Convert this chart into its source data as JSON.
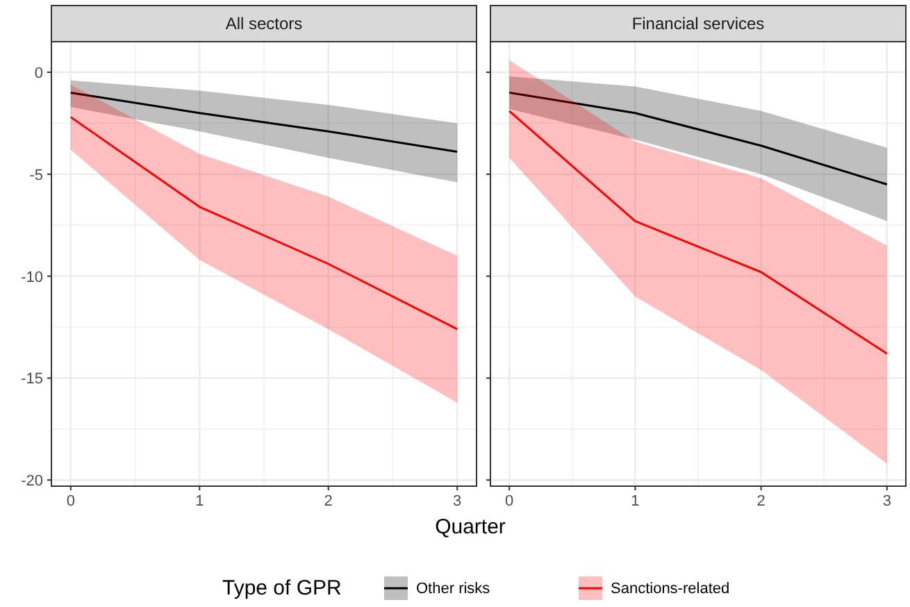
{
  "chart_data": [
    {
      "type": "line",
      "title": "All sectors",
      "xlabel": "Quarter",
      "legend_title": "Type of GPR",
      "legend": "bottom",
      "grid": true,
      "x": [
        0,
        1,
        2,
        3
      ],
      "xlim": [
        -0.15,
        3.15
      ],
      "xticks": [
        0,
        1,
        2,
        3
      ],
      "ylim": [
        -20.3,
        1.5
      ],
      "yticks": [
        0,
        -5,
        -10,
        -15,
        -20
      ],
      "series": [
        {
          "name": "Other risks",
          "color": "#000000",
          "values": [
            -1.0,
            -2.0,
            -2.9,
            -3.9
          ],
          "lower": [
            -1.7,
            -2.9,
            -4.2,
            -5.4
          ],
          "upper": [
            -0.4,
            -0.9,
            -1.6,
            -2.5
          ]
        },
        {
          "name": "Sanctions-related",
          "color": "#ff0000",
          "values": [
            -2.2,
            -6.6,
            -9.4,
            -12.6
          ],
          "lower": [
            -3.8,
            -9.2,
            -12.6,
            -16.2
          ],
          "upper": [
            -0.6,
            -4.0,
            -6.1,
            -9.0
          ]
        }
      ]
    },
    {
      "type": "line",
      "title": "Financial services",
      "grid": true,
      "tick_labels": "x",
      "x": [
        0,
        1,
        2,
        3
      ],
      "xlim": [
        -0.15,
        3.15
      ],
      "xticks": [
        0,
        1,
        2,
        3
      ],
      "ylim": [
        -20.3,
        1.5
      ],
      "yticks": [
        0,
        -5,
        -10,
        -15,
        -20
      ],
      "series": [
        {
          "color": "#000000",
          "values": [
            -1.0,
            -2.0,
            -3.6,
            -5.5
          ],
          "lower": [
            -1.8,
            -3.3,
            -5.0,
            -7.3
          ],
          "upper": [
            -0.2,
            -0.7,
            -1.9,
            -3.7
          ]
        },
        {
          "color": "#ff0000",
          "values": [
            -1.9,
            -7.3,
            -9.8,
            -13.8
          ],
          "lower": [
            -4.2,
            -11.0,
            -14.6,
            -19.2
          ],
          "upper": [
            0.6,
            -3.4,
            -5.2,
            -8.5
          ]
        }
      ]
    }
  ]
}
